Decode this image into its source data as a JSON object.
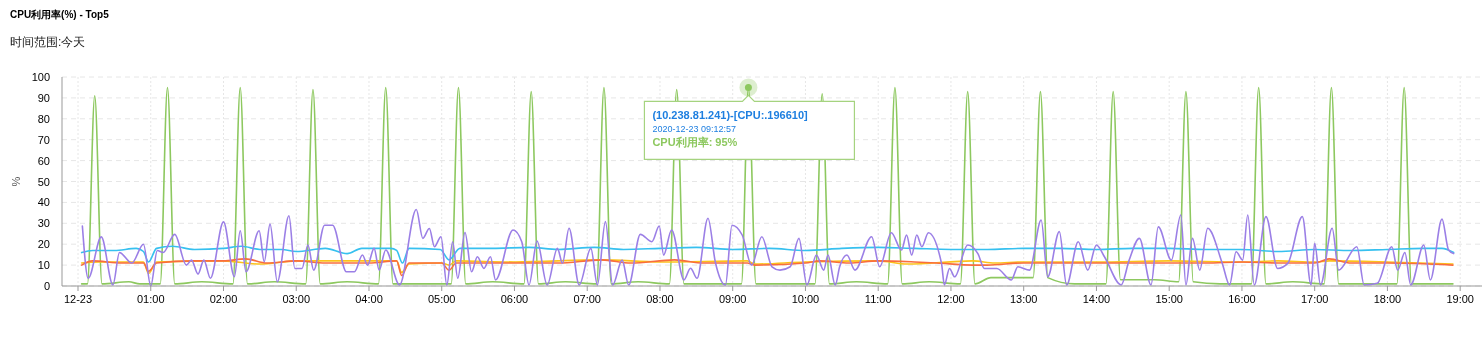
{
  "chart_data": {
    "type": "line",
    "title": "CPU利用率(%) - Top5",
    "subtitle": "时间范围:今天",
    "ylabel": "%",
    "xlim": [
      -0.22,
      19.3
    ],
    "ylim": [
      0,
      100
    ],
    "yticks": [
      0,
      10,
      20,
      30,
      40,
      50,
      60,
      70,
      80,
      90,
      100
    ],
    "xticks": [
      {
        "value": 0,
        "label": "12-23"
      },
      {
        "value": 1,
        "label": "01:00"
      },
      {
        "value": 2,
        "label": "02:00"
      },
      {
        "value": 3,
        "label": "03:00"
      },
      {
        "value": 4,
        "label": "04:00"
      },
      {
        "value": 5,
        "label": "05:00"
      },
      {
        "value": 6,
        "label": "06:00"
      },
      {
        "value": 7,
        "label": "07:00"
      },
      {
        "value": 8,
        "label": "08:00"
      },
      {
        "value": 9,
        "label": "09:00"
      },
      {
        "value": 10,
        "label": "10:00"
      },
      {
        "value": 11,
        "label": "11:00"
      },
      {
        "value": 12,
        "label": "12:00"
      },
      {
        "value": 13,
        "label": "13:00"
      },
      {
        "value": 14,
        "label": "14:00"
      },
      {
        "value": 15,
        "label": "15:00"
      },
      {
        "value": 16,
        "label": "16:00"
      },
      {
        "value": 17,
        "label": "17:00"
      },
      {
        "value": 18,
        "label": "18:00"
      },
      {
        "value": 19,
        "label": "19:00"
      }
    ],
    "grid": true,
    "marker": "none",
    "line_style": "solid",
    "annotations": [
      {
        "text": "(10.238.81.241)-[CPU:.196610]\n2020-12-23 09:12:57\nCPU利用率: 95%",
        "x": 9.2158,
        "y": 95
      }
    ],
    "series": [
      {
        "color": "#8dc85f",
        "x": [
          0.05,
          0.13,
          0.23,
          0.33,
          0.7,
          0.85,
          1.13,
          1.23,
          1.33,
          1.7,
          2.13,
          2.23,
          2.33,
          2.7,
          3.13,
          3.23,
          3.33,
          3.7,
          4.13,
          4.23,
          4.33,
          4.7,
          5.13,
          5.23,
          5.33,
          5.7,
          6.13,
          6.23,
          6.33,
          6.7,
          7.13,
          7.23,
          7.33,
          7.7,
          8.13,
          8.23,
          8.33,
          8.7,
          9.12,
          9.2158,
          9.32,
          9.7,
          10.13,
          10.23,
          10.33,
          10.7,
          11.13,
          11.23,
          11.33,
          11.7,
          12.13,
          12.23,
          12.33,
          12.55,
          13.05,
          13.13,
          13.23,
          13.33,
          13.7,
          14.13,
          14.23,
          14.33,
          14.8,
          15.13,
          15.23,
          15.33,
          15.7,
          16.13,
          16.23,
          16.33,
          16.7,
          17.13,
          17.23,
          17.33,
          17.7,
          18.13,
          18.23,
          18.33,
          18.9
        ],
        "values": [
          1,
          1,
          91,
          1,
          2,
          1,
          1,
          95,
          1,
          2,
          1,
          95,
          1,
          2,
          1,
          94,
          1,
          2,
          1,
          95,
          1,
          1,
          1,
          95,
          1,
          2,
          1,
          93,
          1,
          2,
          1,
          95,
          1,
          2,
          1,
          94,
          1,
          1,
          1,
          95,
          1,
          1,
          1,
          92,
          1,
          2,
          1,
          95,
          1,
          2,
          1,
          93,
          1,
          4,
          4,
          4,
          93,
          4,
          1,
          1,
          93,
          3,
          3,
          2,
          93,
          2,
          1,
          1,
          95,
          1,
          2,
          1,
          95,
          1,
          1,
          1,
          95,
          1,
          1
        ]
      },
      {
        "color": "#fcc21b",
        "x": [
          0.05,
          0.3,
          0.9,
          0.97,
          1.08,
          2.0,
          2.5,
          3.0,
          3.5,
          4.0,
          4.38,
          4.45,
          4.55,
          5.0,
          5.1,
          5.2,
          6.0,
          7.2,
          8.0,
          9.2,
          9.3,
          10.0,
          11.0,
          11.4,
          12.3,
          12.6,
          13.0,
          14.0,
          15.0,
          16.0,
          16.5,
          17.0,
          17.2,
          18.0,
          18.9
        ],
        "values": [
          11,
          11.5,
          11.5,
          6,
          11.5,
          12,
          10.5,
          12,
          12,
          12,
          12,
          6.5,
          10.5,
          11,
          10,
          12,
          11.5,
          12.5,
          11.5,
          12,
          10.5,
          11.5,
          12,
          10.5,
          12,
          11,
          11.5,
          11.5,
          12,
          11.5,
          12,
          11.5,
          12,
          11.5,
          10.5
        ]
      },
      {
        "color": "#f96d3e",
        "x": [
          0.05,
          0.2,
          0.6,
          0.9,
          0.97,
          1.08,
          1.6,
          2.0,
          2.3,
          2.6,
          3.0,
          3.4,
          3.7,
          4.0,
          4.38,
          4.45,
          4.55,
          5.0,
          5.1,
          5.2,
          6.0,
          6.6,
          7.2,
          7.6,
          8.2,
          8.6,
          9.2,
          9.3,
          10.0,
          10.2,
          10.6,
          11.0,
          11.5,
          11.8,
          12.3,
          12.5,
          13.0,
          14.0,
          15.0,
          15.5,
          16.0,
          16.5,
          17.0,
          17.2,
          17.5,
          18.0,
          18.9
        ],
        "values": [
          10,
          12,
          11,
          11,
          7,
          11,
          12,
          12,
          13,
          11,
          12,
          11,
          11,
          11,
          12,
          5,
          11,
          11,
          7.5,
          11,
          11,
          11,
          12.5,
          11,
          12.5,
          11,
          11,
          10,
          11,
          12,
          11,
          12,
          11.5,
          11,
          10,
          10,
          11,
          11,
          11,
          11,
          11.5,
          11,
          11,
          13,
          11,
          11,
          10
        ]
      },
      {
        "color": "#36c0ef",
        "x": [
          0.05,
          0.2,
          0.5,
          0.8,
          0.9,
          0.97,
          1.08,
          1.3,
          1.6,
          2.0,
          2.25,
          2.5,
          2.8,
          3.0,
          3.4,
          3.7,
          3.9,
          4.3,
          4.38,
          4.46,
          4.55,
          4.98,
          5.1,
          5.25,
          5.7,
          6.2,
          6.6,
          7.1,
          7.5,
          8.0,
          8.5,
          9.0,
          9.5,
          10.0,
          10.5,
          11.0,
          11.5,
          12.0,
          12.5,
          13.0,
          13.5,
          14.0,
          14.5,
          15.0,
          15.5,
          16.0,
          16.5,
          17.0,
          17.5,
          18.0,
          18.5,
          18.75,
          18.91
        ],
        "values": [
          16,
          17,
          17,
          18,
          16.5,
          11.5,
          18,
          19,
          17.5,
          18,
          19,
          17.5,
          17.5,
          16.5,
          18,
          15.5,
          18,
          18,
          17,
          11,
          18,
          17.5,
          12.5,
          18,
          18,
          18.5,
          17.5,
          18.5,
          17.5,
          18,
          18.5,
          17.5,
          18,
          17,
          18,
          18.5,
          18,
          17.5,
          17.5,
          18,
          18,
          17.5,
          18,
          18,
          17.5,
          17.5,
          16.5,
          17.5,
          17,
          17.5,
          18,
          18,
          16
        ]
      },
      {
        "color": "#9b7fe6",
        "x": [
          0.06,
          0.14,
          0.32,
          0.48,
          0.57,
          0.74,
          0.9,
          1.0,
          1.09,
          1.17,
          1.33,
          1.49,
          1.56,
          1.65,
          1.73,
          1.82,
          2.0,
          2.15,
          2.23,
          2.31,
          2.49,
          2.56,
          2.64,
          2.74,
          2.9,
          2.98,
          3.08,
          3.16,
          3.24,
          3.39,
          3.5,
          3.69,
          3.8,
          3.91,
          3.98,
          4.07,
          4.14,
          4.23,
          4.42,
          4.65,
          4.74,
          4.83,
          4.9,
          4.99,
          5.07,
          5.15,
          5.22,
          5.32,
          5.41,
          5.49,
          5.58,
          5.67,
          5.74,
          5.98,
          6.1,
          6.2,
          6.31,
          6.45,
          6.59,
          6.66,
          6.75,
          6.89,
          7.05,
          7.14,
          7.25,
          7.35,
          7.48,
          7.57,
          7.73,
          7.89,
          7.99,
          8.05,
          8.16,
          8.33,
          8.42,
          8.51,
          8.66,
          8.76,
          8.9,
          8.99,
          9.13,
          9.26,
          9.4,
          9.54,
          9.65,
          9.79,
          9.91,
          10.02,
          10.15,
          10.25,
          10.31,
          10.41,
          10.47,
          10.57,
          10.68,
          10.91,
          11.02,
          11.18,
          11.32,
          11.39,
          11.46,
          11.53,
          11.6,
          11.69,
          11.87,
          11.91,
          11.98,
          12.05,
          12.23,
          12.37,
          12.46,
          12.63,
          12.83,
          12.92,
          13.08,
          13.24,
          13.33,
          13.49,
          13.59,
          13.75,
          13.88,
          14.0,
          14.11,
          14.34,
          14.45,
          14.59,
          14.75,
          14.85,
          15.03,
          15.16,
          15.23,
          15.32,
          15.42,
          15.53,
          15.73,
          15.83,
          15.92,
          16.01,
          16.08,
          16.17,
          16.33,
          16.49,
          16.63,
          16.83,
          16.95,
          17.0,
          17.08,
          17.24,
          17.33,
          17.58,
          17.68,
          17.86,
          18.06,
          18.14,
          18.24,
          18.32,
          18.5,
          18.59,
          18.75,
          18.84,
          18.91
        ],
        "values": [
          28.7,
          3.7,
          23.5,
          0.5,
          16,
          11,
          20,
          0,
          17,
          16,
          24.7,
          10,
          12.4,
          5.7,
          12.4,
          3.7,
          30.7,
          4.5,
          26.4,
          6.8,
          26.4,
          11.6,
          29.6,
          2,
          33.6,
          8.4,
          8.4,
          19.6,
          7.6,
          29.1,
          29.1,
          6.8,
          6.8,
          14.8,
          10,
          18,
          7.6,
          17.2,
          0.5,
          36.6,
          22.8,
          27.5,
          18.8,
          23.6,
          0.5,
          21.2,
          3.7,
          25.6,
          6.8,
          14,
          8.4,
          14,
          2.9,
          26.8,
          21.2,
          0.5,
          21.5,
          0.5,
          18,
          10.9,
          27.6,
          0.5,
          18,
          0.5,
          30.8,
          0.5,
          12.4,
          0.5,
          24.7,
          21.2,
          28.7,
          14.8,
          26.8,
          2.9,
          8.5,
          3.7,
          32.4,
          11.6,
          0.5,
          29.1,
          24.4,
          10,
          23.6,
          9.2,
          7.6,
          9.2,
          22.8,
          0.5,
          14.8,
          7.6,
          14.8,
          0.5,
          9.2,
          14.8,
          7.6,
          23.6,
          9.2,
          25.5,
          17.2,
          24.4,
          14.8,
          24.4,
          18.8,
          25.5,
          10.8,
          0.5,
          8.4,
          4.4,
          19.6,
          15.5,
          8.4,
          8.4,
          2.9,
          9.2,
          7.6,
          31.6,
          4.4,
          26,
          0.5,
          21.2,
          7.6,
          19.6,
          14,
          0.5,
          12.4,
          22.8,
          0.5,
          28.3,
          12.4,
          34,
          0.5,
          22.8,
          7.6,
          27.6,
          10.8,
          0.5,
          16.4,
          12.4,
          34,
          0.5,
          33.2,
          8.4,
          10.8,
          33.2,
          0.5,
          20.4,
          0.5,
          27.6,
          7.6,
          18.8,
          0.5,
          1.3,
          18.8,
          7.6,
          16,
          0.5,
          19.6,
          2.9,
          32,
          17.2,
          15.5
        ]
      }
    ]
  }
}
